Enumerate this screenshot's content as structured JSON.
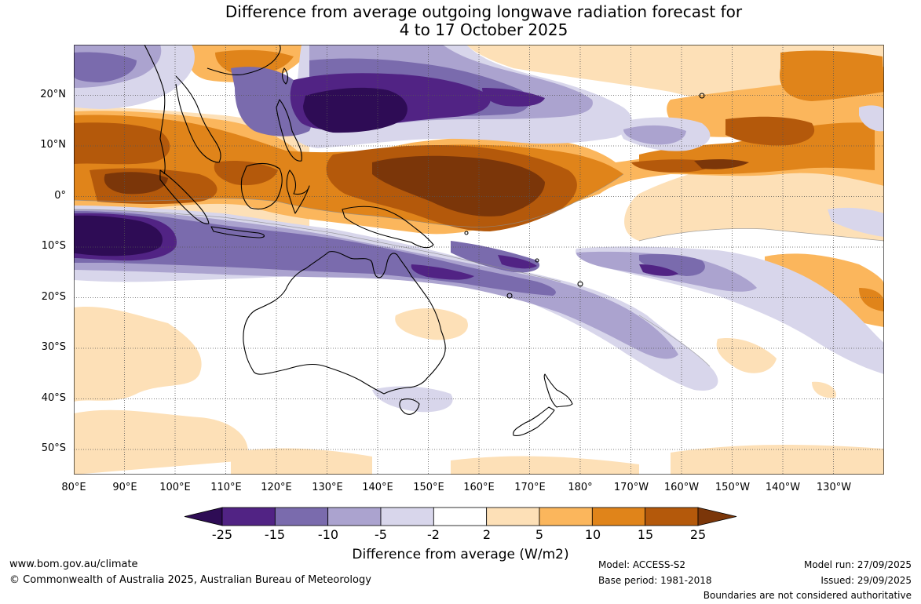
{
  "title": {
    "line1": "Difference from average outgoing longwave radiation forecast for",
    "line2": "4 to 17 October 2025"
  },
  "map": {
    "lat_labels": [
      "20°N",
      "10°N",
      "0°",
      "10°S",
      "20°S",
      "30°S",
      "40°S",
      "50°S"
    ],
    "lon_labels": [
      "80°E",
      "90°E",
      "100°E",
      "110°E",
      "120°E",
      "130°E",
      "140°E",
      "150°E",
      "160°E",
      "170°E",
      "180°",
      "170°W",
      "160°W",
      "150°W",
      "140°W",
      "130°W"
    ],
    "extent": {
      "lon_min": 80,
      "lon_max": 240,
      "lat_min": -55,
      "lat_max": 30
    }
  },
  "colorbar": {
    "ticks": [
      "-25",
      "-15",
      "-10",
      "-5",
      "-2",
      "2",
      "5",
      "10",
      "15",
      "25"
    ],
    "colors": [
      "#2e0c55",
      "#512384",
      "#7a6bad",
      "#aba3cf",
      "#d8d6eb",
      "#ffffff",
      "#fde0b7",
      "#fbb65c",
      "#e0841a",
      "#b4590b",
      "#7b3609"
    ],
    "label": "Difference from average (W/m2)"
  },
  "footer": {
    "url": "www.bom.gov.au/climate",
    "copyright": "© Commonwealth of Australia 2025, Australian Bureau of Meteorology",
    "model": "Model: ACCESS-S2",
    "base_period": "Base period: 1981-2018",
    "model_run": "Model run: 27/09/2025",
    "issued": "Issued: 29/09/2025",
    "boundaries": "Boundaries are not considered authoritative"
  }
}
